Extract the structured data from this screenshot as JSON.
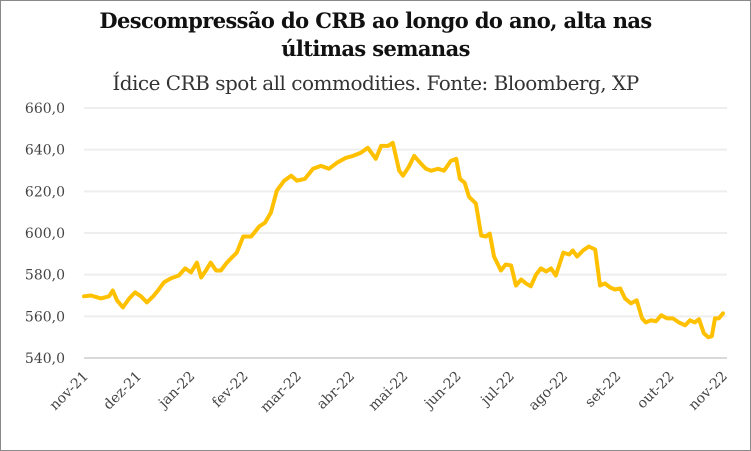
{
  "chart_data": {
    "type": "line",
    "title_line1": "Descompressão do CRB ao longo do ano, alta nas",
    "title_line2": "últimas semanas",
    "subtitle": "Ídice CRB spot all commodities. Fonte: Bloomberg, XP",
    "xlabel": "",
    "ylabel": "",
    "ylim": [
      540,
      660
    ],
    "yticks": [
      "540,0",
      "560,0",
      "580,0",
      "600,0",
      "620,0",
      "640,0",
      "660,0"
    ],
    "ytick_values": [
      540,
      560,
      580,
      600,
      620,
      640,
      660
    ],
    "xticks": [
      "nov-21",
      "dez-21",
      "jan-22",
      "fev-22",
      "mar-22",
      "abr-22",
      "mai-22",
      "jun-22",
      "jul-22",
      "ago-22",
      "set-22",
      "out-22",
      "nov-22"
    ],
    "x_unit": "months since nov-21",
    "grid": true,
    "line_color": "#FFC000",
    "series": [
      {
        "name": "CRB spot",
        "x": [
          0,
          0.13,
          0.32,
          0.47,
          0.54,
          0.62,
          0.73,
          0.85,
          0.96,
          1.07,
          1.18,
          1.3,
          1.39,
          1.5,
          1.63,
          1.78,
          1.9,
          2.01,
          2.12,
          2.2,
          2.29,
          2.38,
          2.48,
          2.57,
          2.67,
          2.76,
          2.87,
          2.99,
          3.14,
          3.29,
          3.4,
          3.51,
          3.62,
          3.76,
          3.89,
          4.0,
          4.15,
          4.3,
          4.45,
          4.6,
          4.75,
          4.92,
          5.05,
          5.2,
          5.33,
          5.48,
          5.58,
          5.71,
          5.8,
          5.92,
          5.99,
          6.1,
          6.2,
          6.33,
          6.42,
          6.52,
          6.65,
          6.76,
          6.89,
          6.99,
          7.06,
          7.15,
          7.23,
          7.36,
          7.46,
          7.55,
          7.62,
          7.7,
          7.83,
          7.92,
          8.02,
          8.11,
          8.21,
          8.3,
          8.39,
          8.49,
          8.58,
          8.68,
          8.77,
          8.86,
          9.0,
          9.11,
          9.18,
          9.26,
          9.37,
          9.48,
          9.6,
          9.69,
          9.78,
          9.88,
          9.97,
          10.07,
          10.16,
          10.27,
          10.38,
          10.48,
          10.55,
          10.65,
          10.74,
          10.84,
          10.95,
          11.06,
          11.17,
          11.29,
          11.38,
          11.47,
          11.55,
          11.64,
          11.72,
          11.79,
          11.85,
          11.92,
          12.0
        ],
        "values": [
          569.6,
          570,
          568.6,
          569.6,
          572.4,
          567.7,
          564.3,
          568.6,
          571.5,
          569.6,
          566.7,
          569.6,
          572.4,
          576.3,
          578.2,
          579.6,
          583,
          581.1,
          585.8,
          578.7,
          582,
          585.8,
          582,
          582,
          585.4,
          587.8,
          590.6,
          598.3,
          598.3,
          603.1,
          605,
          609.8,
          620.3,
          625.1,
          627.5,
          625.1,
          626,
          630.8,
          632.2,
          630.8,
          633.7,
          636.1,
          637,
          638.5,
          640.9,
          635.6,
          641.8,
          641.8,
          643.3,
          629.9,
          627.5,
          631.8,
          637,
          633.2,
          630.8,
          629.9,
          630.8,
          629.9,
          634.6,
          635.6,
          626,
          624.1,
          617.4,
          614.1,
          598.8,
          598.3,
          599.7,
          588.7,
          582,
          584.9,
          584.4,
          574.8,
          577.7,
          575.8,
          574.4,
          580.1,
          583,
          581.5,
          583,
          579.6,
          590.6,
          589.7,
          591.6,
          588.7,
          591.6,
          593.5,
          592.1,
          574.8,
          575.8,
          573.9,
          572.9,
          573.4,
          568.6,
          566.2,
          567.7,
          559.0,
          557.1,
          558.1,
          557.6,
          560.5,
          559.0,
          559.0,
          557.1,
          555.7,
          558.1,
          557.1,
          558.6,
          551.9,
          550,
          550.4,
          559.0,
          559.0,
          561.4
        ]
      }
    ]
  }
}
